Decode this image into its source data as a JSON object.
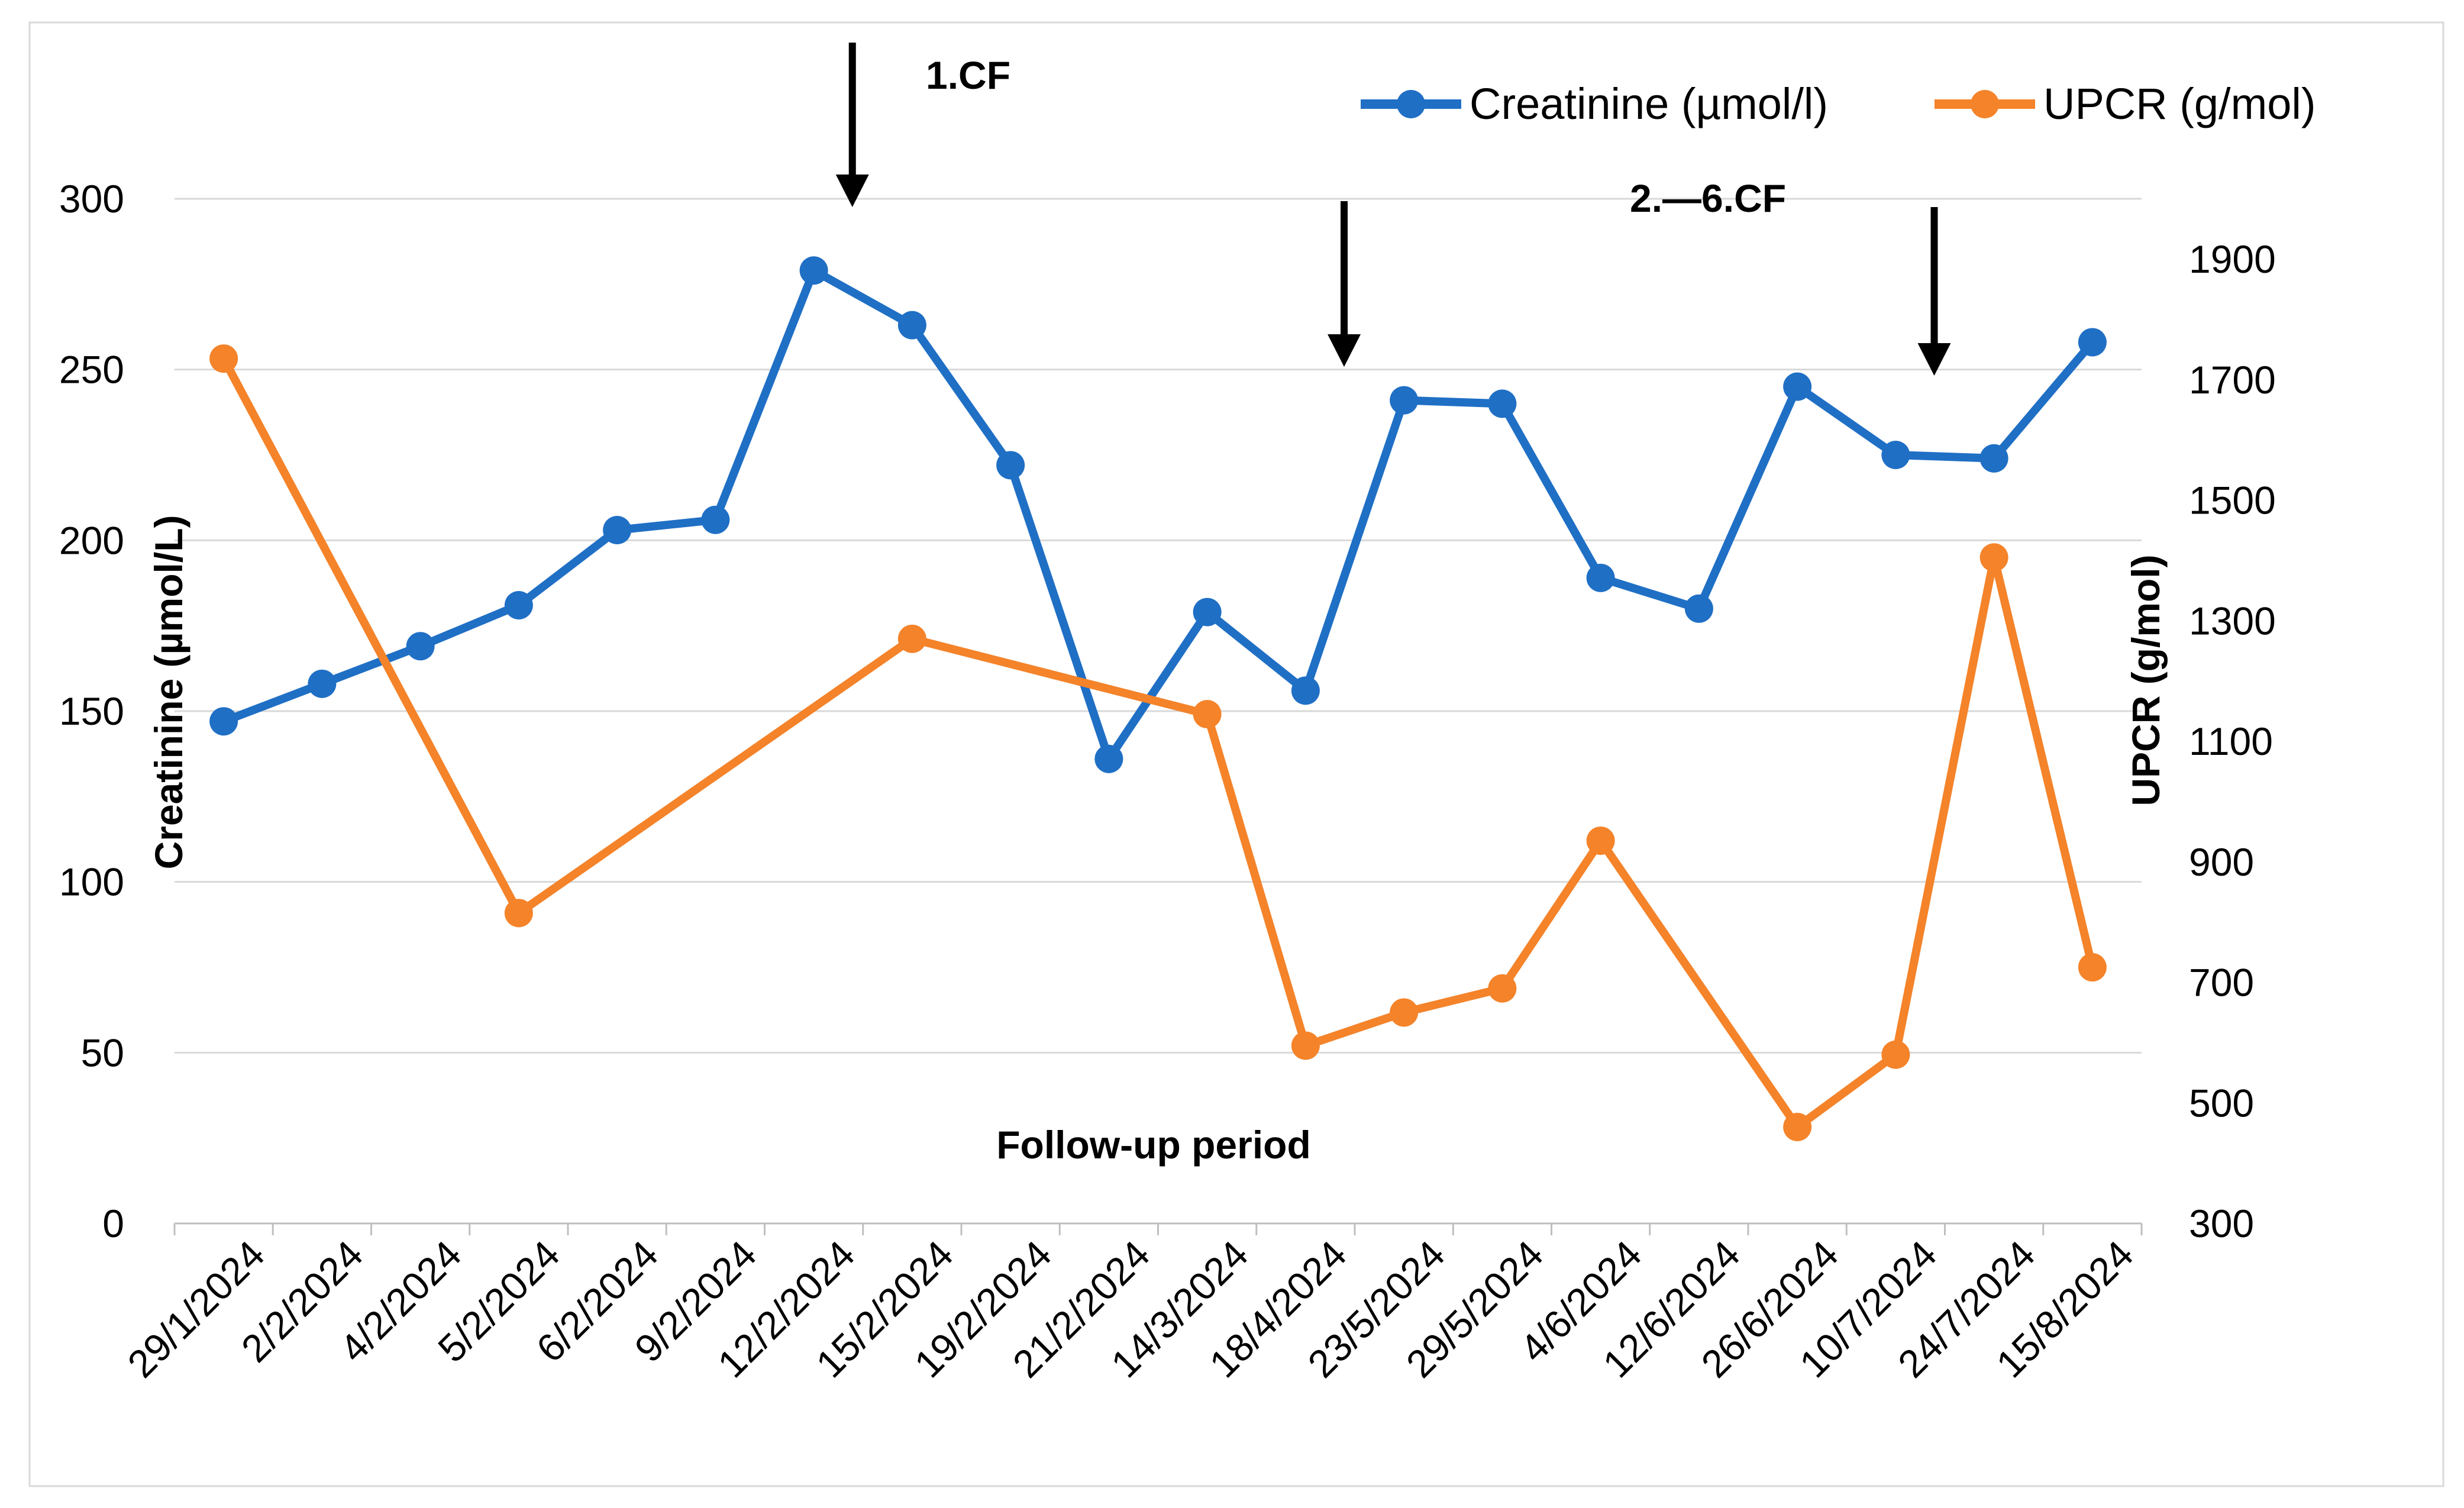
{
  "chart_data": {
    "type": "line",
    "title": "",
    "xlabel": "Follow-up period",
    "ylabel": "Creatinine (µmol/L)",
    "y2label": "UPCR (g/mol)",
    "categories": [
      "29/1/2024",
      "2/2/2024",
      "4/2/2024",
      "5/2/2024",
      "6/2/2024",
      "9/2/2024",
      "12/2/2024",
      "15/2/2024",
      "19/2/2024",
      "21/2/2024",
      "14/3/2024",
      "18/4/2024",
      "23/5/2024",
      "29/5/2024",
      "4/6/2024",
      "12/6/2024",
      "26/6/2024",
      "10/7/2024",
      "24/7/2024",
      "15/8/2024"
    ],
    "ylim": [
      0,
      300
    ],
    "y_ticks": [
      "0",
      "50",
      "100",
      "150",
      "200",
      "250",
      "300"
    ],
    "y2lim": [
      300,
      2000
    ],
    "y2_ticks": [
      "300",
      "500",
      "700",
      "900",
      "1100",
      "1300",
      "1500",
      "1700",
      "1900"
    ],
    "grid": true,
    "legend_position": "top-right",
    "series": [
      {
        "name": "Creatinine (µmol/l)",
        "axis": "left",
        "color": "#1f6fc5",
        "values": [
          147,
          158,
          169,
          181,
          203,
          206,
          279,
          263,
          222,
          136,
          179,
          156,
          241,
          240,
          189,
          180,
          245,
          225,
          224,
          258
        ]
      },
      {
        "name": "UPCR (g/mol)",
        "axis": "right",
        "color": "#f4832a",
        "values": [
          1735,
          null,
          null,
          815,
          null,
          null,
          null,
          1270,
          null,
          null,
          1145,
          595,
          650,
          690,
          935,
          null,
          460,
          580,
          1405,
          725
        ]
      }
    ],
    "annotations": [
      {
        "label": "1.CF",
        "category": "15/2/2024"
      },
      {
        "label": "2.—6.CF",
        "category": "23/5/2024"
      },
      {
        "label": "",
        "category": "24/7/2024"
      }
    ]
  }
}
